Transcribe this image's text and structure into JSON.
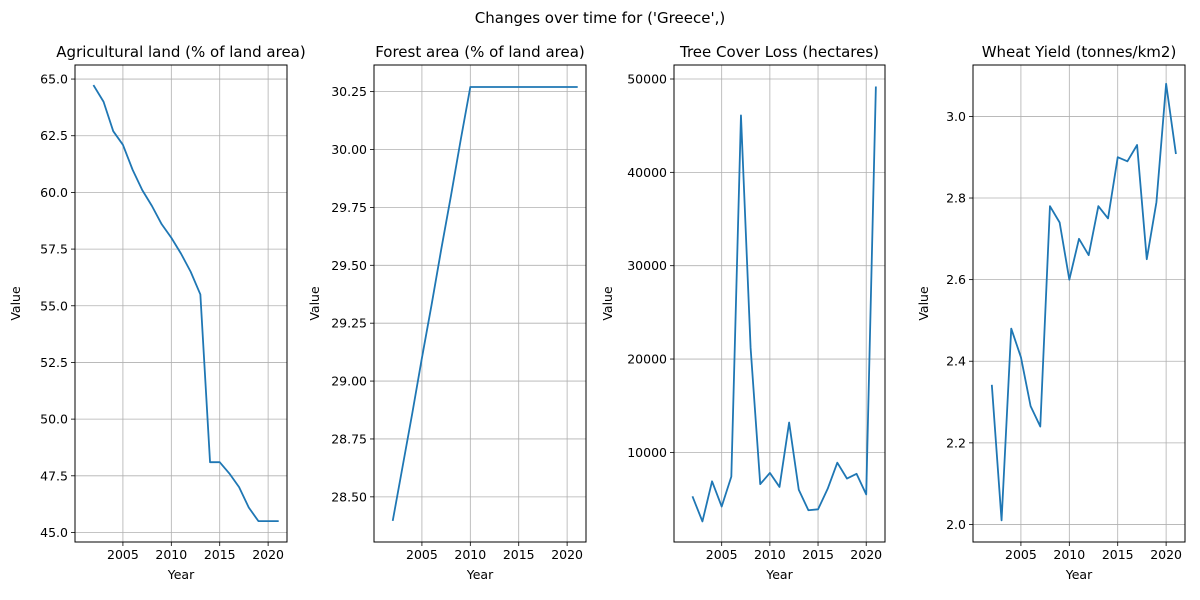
{
  "figure": {
    "title": "Changes over time for ('Greece',)"
  },
  "colors": {
    "line": "#1f77b4",
    "grid": "#b0b0b0",
    "axis": "#000000"
  },
  "chart_data": [
    {
      "type": "line",
      "title": "Agricultural land (% of land area)",
      "xlabel": "Year",
      "ylabel": "Value",
      "grid": true,
      "xlim": [
        2000.05,
        2021.95
      ],
      "ylim": [
        44.58,
        65.62
      ],
      "xticks": [
        2005,
        2010,
        2015,
        2020
      ],
      "xtick_labels": [
        "2005",
        "2010",
        "2015",
        "2020"
      ],
      "yticks": [
        45.0,
        47.5,
        50.0,
        52.5,
        55.0,
        57.5,
        60.0,
        62.5,
        65.0
      ],
      "ytick_labels": [
        "45.0",
        "47.5",
        "50.0",
        "52.5",
        "55.0",
        "57.5",
        "60.0",
        "62.5",
        "65.0"
      ],
      "x": [
        2002,
        2003,
        2004,
        2005,
        2006,
        2007,
        2008,
        2009,
        2010,
        2011,
        2012,
        2013,
        2014,
        2015,
        2016,
        2017,
        2018,
        2019,
        2020,
        2021
      ],
      "y": [
        64.7,
        64.0,
        62.7,
        62.1,
        61.0,
        60.1,
        59.4,
        58.6,
        58.0,
        57.3,
        56.5,
        55.5,
        48.1,
        48.1,
        47.6,
        47.0,
        46.1,
        45.5,
        45.5,
        45.5
      ]
    },
    {
      "type": "line",
      "title": "Forest area (% of land area)",
      "xlabel": "Year",
      "ylabel": "Value",
      "grid": true,
      "xlim": [
        2000.05,
        2021.95
      ],
      "ylim": [
        28.305,
        30.365
      ],
      "xticks": [
        2005,
        2010,
        2015,
        2020
      ],
      "xtick_labels": [
        "2005",
        "2010",
        "2015",
        "2020"
      ],
      "yticks": [
        28.5,
        28.75,
        29.0,
        29.25,
        29.5,
        29.75,
        30.0,
        30.25
      ],
      "ytick_labels": [
        "28.50",
        "28.75",
        "29.00",
        "29.25",
        "29.50",
        "29.75",
        "30.00",
        "30.25"
      ],
      "x": [
        2002,
        2003,
        2004,
        2005,
        2006,
        2007,
        2008,
        2009,
        2010,
        2011,
        2012,
        2013,
        2014,
        2015,
        2016,
        2017,
        2018,
        2019,
        2020,
        2021
      ],
      "y": [
        28.4,
        28.63,
        28.86,
        29.1,
        29.33,
        29.57,
        29.8,
        30.04,
        30.27,
        30.27,
        30.27,
        30.27,
        30.27,
        30.27,
        30.27,
        30.27,
        30.27,
        30.27,
        30.27,
        30.27
      ]
    },
    {
      "type": "line",
      "title": "Tree Cover Loss (hectares)",
      "xlabel": "Year",
      "ylabel": "Value",
      "grid": true,
      "xlim": [
        2000.05,
        2021.95
      ],
      "ylim": [
        400,
        51500
      ],
      "xticks": [
        2005,
        2010,
        2015,
        2020
      ],
      "xtick_labels": [
        "2005",
        "2010",
        "2015",
        "2020"
      ],
      "yticks": [
        10000,
        20000,
        30000,
        40000,
        50000
      ],
      "ytick_labels": [
        "10000",
        "20000",
        "30000",
        "40000",
        "50000"
      ],
      "x": [
        2002,
        2003,
        2004,
        2005,
        2006,
        2007,
        2008,
        2009,
        2010,
        2011,
        2012,
        2013,
        2014,
        2015,
        2016,
        2017,
        2018,
        2019,
        2020,
        2021
      ],
      "y": [
        5200,
        2600,
        6900,
        4200,
        7400,
        46100,
        21200,
        6600,
        7800,
        6300,
        13200,
        6000,
        3800,
        3900,
        6100,
        8900,
        7200,
        7700,
        5500,
        49100
      ]
    },
    {
      "type": "line",
      "title": "Wheat Yield (tonnes/km2)",
      "xlabel": "Year",
      "ylabel": "Value",
      "grid": true,
      "xlim": [
        2000.05,
        2021.95
      ],
      "ylim": [
        1.957,
        3.126
      ],
      "xticks": [
        2005,
        2010,
        2015,
        2020
      ],
      "xtick_labels": [
        "2005",
        "2010",
        "2015",
        "2020"
      ],
      "yticks": [
        2.0,
        2.2,
        2.4,
        2.6,
        2.8,
        3.0
      ],
      "ytick_labels": [
        "2.0",
        "2.2",
        "2.4",
        "2.6",
        "2.8",
        "3.0"
      ],
      "x": [
        2002,
        2003,
        2004,
        2005,
        2006,
        2007,
        2008,
        2009,
        2010,
        2011,
        2012,
        2013,
        2014,
        2015,
        2016,
        2017,
        2018,
        2019,
        2020,
        2021
      ],
      "y": [
        2.34,
        2.01,
        2.48,
        2.41,
        2.29,
        2.24,
        2.78,
        2.74,
        2.6,
        2.7,
        2.66,
        2.78,
        2.75,
        2.9,
        2.89,
        2.93,
        2.65,
        2.79,
        3.08,
        2.91
      ]
    }
  ]
}
